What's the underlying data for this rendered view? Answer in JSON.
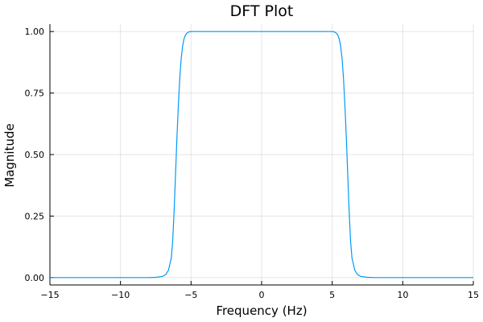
{
  "chart_data": {
    "type": "line",
    "title": "DFT Plot",
    "xlabel": "Frequency (Hz)",
    "ylabel": "Magnitude",
    "xlim": [
      -15,
      15
    ],
    "ylim": [
      -0.03,
      1.03
    ],
    "x_ticks": [
      -15,
      -10,
      -5,
      0,
      5,
      10,
      15
    ],
    "x_tick_labels": [
      "−15",
      "−10",
      "−5",
      "0",
      "5",
      "10",
      "15"
    ],
    "y_ticks": [
      0,
      0.25,
      0.5,
      0.75,
      1.0
    ],
    "y_tick_labels": [
      "0.00",
      "0.25",
      "0.50",
      "0.75",
      "1.00"
    ],
    "grid": true,
    "legend": "none",
    "series": [
      {
        "color": "#009af9",
        "x": [
          -15,
          -8,
          -7.5,
          -7,
          -6.8,
          -6.6,
          -6.4,
          -6.3,
          -6.2,
          -6.1,
          -6.0,
          -5.9,
          -5.8,
          -5.7,
          -5.6,
          -5.5,
          -5.4,
          -5.3,
          -5.2,
          -5.1,
          -5.0,
          -4.8,
          -4.5,
          -4.0,
          0,
          4.0,
          4.5,
          4.8,
          5.0,
          5.1,
          5.2,
          5.3,
          5.4,
          5.5,
          5.6,
          5.7,
          5.8,
          5.9,
          6.0,
          6.1,
          6.2,
          6.3,
          6.4,
          6.6,
          6.8,
          7.0,
          7.5,
          8,
          15
        ],
        "y": [
          0.0,
          0.0,
          0.001,
          0.005,
          0.012,
          0.03,
          0.08,
          0.15,
          0.27,
          0.42,
          0.57,
          0.7,
          0.81,
          0.89,
          0.94,
          0.97,
          0.985,
          0.993,
          0.997,
          0.999,
          1.0,
          1.0,
          1.0,
          1.0,
          1.0,
          1.0,
          1.0,
          1.0,
          1.0,
          0.999,
          0.997,
          0.993,
          0.985,
          0.97,
          0.94,
          0.89,
          0.81,
          0.7,
          0.57,
          0.42,
          0.27,
          0.15,
          0.08,
          0.03,
          0.012,
          0.005,
          0.001,
          0.0,
          0.0
        ]
      }
    ]
  }
}
